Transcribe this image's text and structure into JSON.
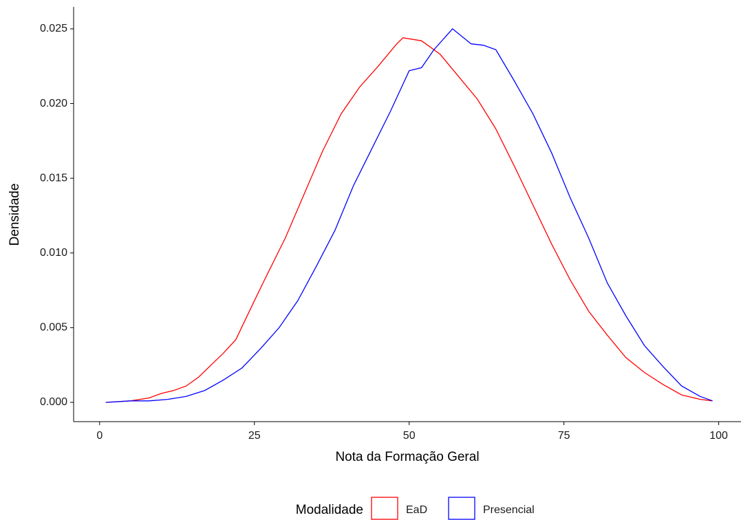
{
  "chart_data": {
    "type": "line",
    "xlabel": "Nota da Formação Geral",
    "ylabel": "Densidade",
    "legend_title": "Modalidade",
    "legend": "bottom",
    "grid": false,
    "xlim": [
      -4.2,
      103.6
    ],
    "ylim": [
      -0.00129,
      0.02647
    ],
    "xticks": [
      0,
      25,
      50,
      75,
      100
    ],
    "yticks": [
      {
        "value": 0,
        "label": "0.000"
      },
      {
        "value": 0.005,
        "label": "0.005"
      },
      {
        "value": 0.01,
        "label": "0.010"
      },
      {
        "value": 0.015,
        "label": "0.015"
      },
      {
        "value": 0.02,
        "label": "0.020"
      },
      {
        "value": 0.025,
        "label": "0.025"
      }
    ],
    "series": [
      {
        "name": "EaD",
        "color": "#ff0000",
        "x": [
          1,
          5,
          8,
          10,
          12,
          14,
          16,
          18,
          20,
          22,
          25,
          27,
          30,
          33,
          36,
          39,
          42,
          45,
          48,
          49,
          52,
          55,
          58,
          61,
          64,
          67,
          70,
          73,
          76,
          79,
          82,
          85,
          88,
          91,
          94,
          97,
          99
        ],
        "values": [
          0,
          0.0001,
          0.0003,
          0.0006,
          0.0008,
          0.0011,
          0.0017,
          0.0025,
          0.0033,
          0.0042,
          0.0068,
          0.0085,
          0.011,
          0.0139,
          0.0168,
          0.0193,
          0.0211,
          0.0225,
          0.024,
          0.0244,
          0.0242,
          0.0233,
          0.0218,
          0.0203,
          0.0183,
          0.0158,
          0.0132,
          0.0106,
          0.0082,
          0.0061,
          0.0045,
          0.003,
          0.002,
          0.0012,
          0.0005,
          0.0002,
          0.0001
        ]
      },
      {
        "name": "Presencial",
        "color": "#0000ff",
        "x": [
          1,
          5,
          8,
          11,
          14,
          17,
          20,
          23,
          26,
          29,
          32,
          35,
          38,
          41,
          44,
          47,
          50,
          52,
          54,
          57,
          60,
          62,
          64,
          67,
          70,
          73,
          76,
          79,
          82,
          85,
          88,
          91,
          94,
          97,
          99
        ],
        "values": [
          0,
          0.0001,
          0.0001,
          0.0002,
          0.0004,
          0.0008,
          0.0015,
          0.0023,
          0.0036,
          0.005,
          0.0068,
          0.0091,
          0.0115,
          0.0145,
          0.017,
          0.0195,
          0.0222,
          0.0224,
          0.0236,
          0.025,
          0.024,
          0.0239,
          0.0236,
          0.0215,
          0.0193,
          0.0167,
          0.0137,
          0.011,
          0.008,
          0.0058,
          0.0038,
          0.0024,
          0.0011,
          0.0004,
          0.0001
        ]
      }
    ]
  }
}
